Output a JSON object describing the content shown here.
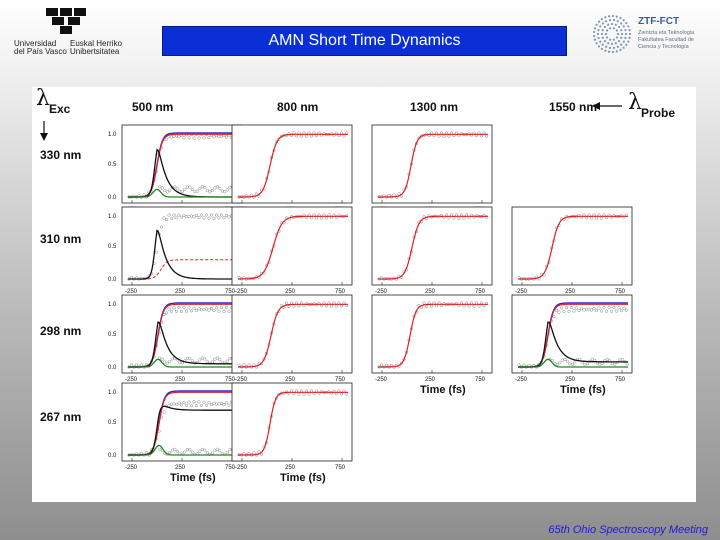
{
  "header": {
    "title": "AMN Short Time Dynamics",
    "logo_left": {
      "line1": "Universidad\ndel País Vasco",
      "line2": "Euskal Herriko\nUnibertsitatea"
    },
    "logo_right": {
      "name": "ZTF-FCT",
      "subtitle": "Zientzia eta Teknologia Fakultatea Facultad de Ciencia y Tecnología"
    }
  },
  "footer": {
    "text": "65th Ohio Spectroscopy Meeting"
  },
  "colors": {
    "title_bg": "#0a2fd6",
    "footer_text": "#1b1bd6",
    "red_fit": "#e02020",
    "blue_fit": "#2a2ad8",
    "green_fit": "#1a8a1a",
    "black_fit": "#111111"
  },
  "chart_data": {
    "type": "line",
    "excitation_label": "Exc",
    "probe_label": "Probe",
    "columns": [
      "500 nm",
      "800 nm",
      "1300 nm",
      "1550 nm"
    ],
    "rows": [
      "330 nm",
      "310 nm",
      "298 nm",
      "267 nm"
    ],
    "x_ticks": [
      -250,
      250,
      750
    ],
    "y_ticks": [
      "1.0",
      "0.5",
      "0.0"
    ],
    "x_tick_labels": [
      "-250",
      "250",
      "750"
    ],
    "xlabel": "Time (fs)",
    "panels": [
      {
        "row": 0,
        "col": 0,
        "rise": 0,
        "width": 55,
        "red": true,
        "blue": true,
        "black": true,
        "black_peak": 1.0,
        "black_tail": 0.0,
        "green": true,
        "green_amp": 0.12,
        "gray_high": 0.95,
        "gray_low": 0.12
      },
      {
        "row": 0,
        "col": 1,
        "rise": 30,
        "width": 70,
        "red": true
      },
      {
        "row": 0,
        "col": 2,
        "rise": 40,
        "width": 60,
        "red": true
      },
      {
        "row": 1,
        "col": 0,
        "rise": 0,
        "width": 50,
        "black": true,
        "black_peak": 1.0,
        "black_tail": 0.0,
        "red_dashed": true
      },
      {
        "row": 1,
        "col": 1,
        "rise": 60,
        "width": 90,
        "red": true
      },
      {
        "row": 1,
        "col": 2,
        "rise": 50,
        "width": 70,
        "red": true
      },
      {
        "row": 1,
        "col": 3,
        "rise": 50,
        "width": 70,
        "red": true
      },
      {
        "row": 2,
        "col": 0,
        "rise": 10,
        "width": 55,
        "red": true,
        "blue": true,
        "black": true,
        "black_peak": 0.95,
        "black_tail": 0.05,
        "green": true,
        "green_amp": 0.12,
        "gray_high": 0.9,
        "gray_low": 0.1
      },
      {
        "row": 2,
        "col": 1,
        "rise": 40,
        "width": 70,
        "red": true
      },
      {
        "row": 2,
        "col": 2,
        "rise": 30,
        "width": 60,
        "red": true
      },
      {
        "row": 2,
        "col": 3,
        "rise": 10,
        "width": 55,
        "red": true,
        "blue": true,
        "black": true,
        "black_peak": 0.95,
        "black_tail": 0.08,
        "green": true,
        "green_amp": 0.12,
        "gray_high": 0.9,
        "gray_low": 0.08
      },
      {
        "row": 3,
        "col": 0,
        "rise": 20,
        "width": 55,
        "red": true,
        "blue": true,
        "black": true,
        "black_peak": 0.85,
        "black_tail": 0.7,
        "green": true,
        "green_amp": 0.15,
        "gray_high": 0.8,
        "gray_low": 0.05
      },
      {
        "row": 3,
        "col": 1,
        "rise": 30,
        "width": 55,
        "red": true
      }
    ]
  }
}
